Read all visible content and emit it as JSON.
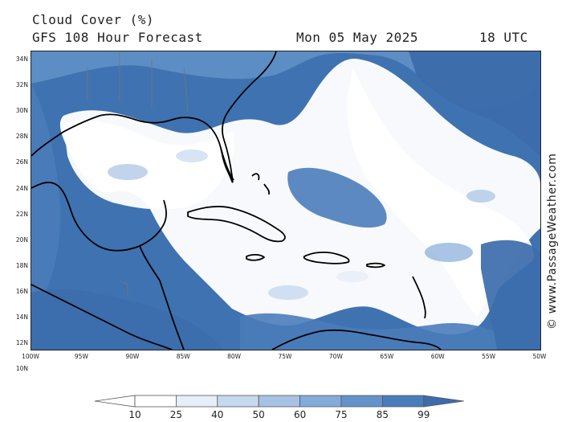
{
  "header": {
    "title": "Cloud Cover (%)",
    "subtitle": "GFS 108 Hour Forecast",
    "date": "Mon 05 May 2025",
    "time": "18 UTC"
  },
  "credit": "© www.PassageWeather.com",
  "axes": {
    "lat_labels": [
      "34N",
      "32N",
      "30N",
      "28N",
      "26N",
      "24N",
      "22N",
      "20N",
      "18N",
      "16N",
      "14N",
      "12N",
      "10N"
    ],
    "lon_labels": [
      "100W",
      "95W",
      "90W",
      "85W",
      "80W",
      "75W",
      "70W",
      "65W",
      "60W",
      "55W",
      "50W"
    ]
  },
  "colorbar": {
    "labels": [
      "10",
      "25",
      "40",
      "50",
      "60",
      "75",
      "85",
      "99"
    ],
    "colors": [
      "#ffffff",
      "#e6eef8",
      "#c6d8ee",
      "#a6c2e4",
      "#85abd9",
      "#6493cb",
      "#4a7cba",
      "#3c6cab"
    ]
  },
  "map": {
    "ocean_color": "#3f72b0",
    "land_color": "#ffffff",
    "coast_color": "#000000"
  }
}
